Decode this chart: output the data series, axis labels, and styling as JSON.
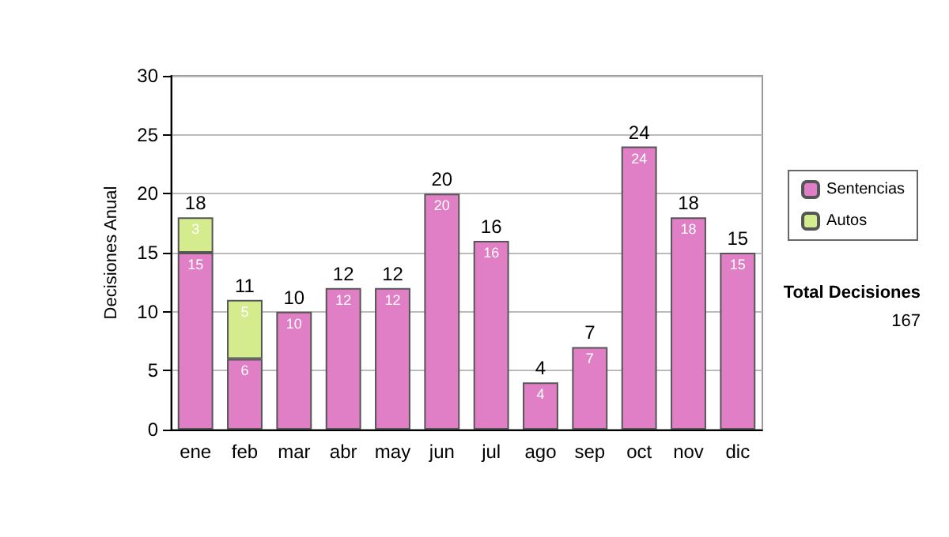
{
  "chart_data": {
    "type": "bar",
    "stacked": true,
    "ylabel": "Decisiones Anual",
    "categories": [
      "ene",
      "feb",
      "mar",
      "abr",
      "may",
      "jun",
      "jul",
      "ago",
      "sep",
      "oct",
      "nov",
      "dic"
    ],
    "series": [
      {
        "name": "Sentencias",
        "color": "#e07fc6",
        "values": [
          15,
          6,
          10,
          12,
          12,
          20,
          16,
          4,
          7,
          24,
          18,
          15
        ]
      },
      {
        "name": "Autos",
        "color": "#d5ec8e",
        "values": [
          3,
          5,
          null,
          null,
          null,
          null,
          null,
          null,
          null,
          null,
          null,
          null
        ]
      }
    ],
    "data_labels": true,
    "totals": [
      "18",
      "11",
      "10",
      "12",
      "12",
      "20",
      "16",
      "4",
      "7",
      "24",
      "18",
      "15"
    ],
    "ylim": [
      0,
      30
    ],
    "yticks": [
      0,
      5,
      10,
      15,
      20,
      25,
      30
    ],
    "grid": "y",
    "legend": "right",
    "annotations": [
      "Total Decisiones",
      "167"
    ]
  }
}
